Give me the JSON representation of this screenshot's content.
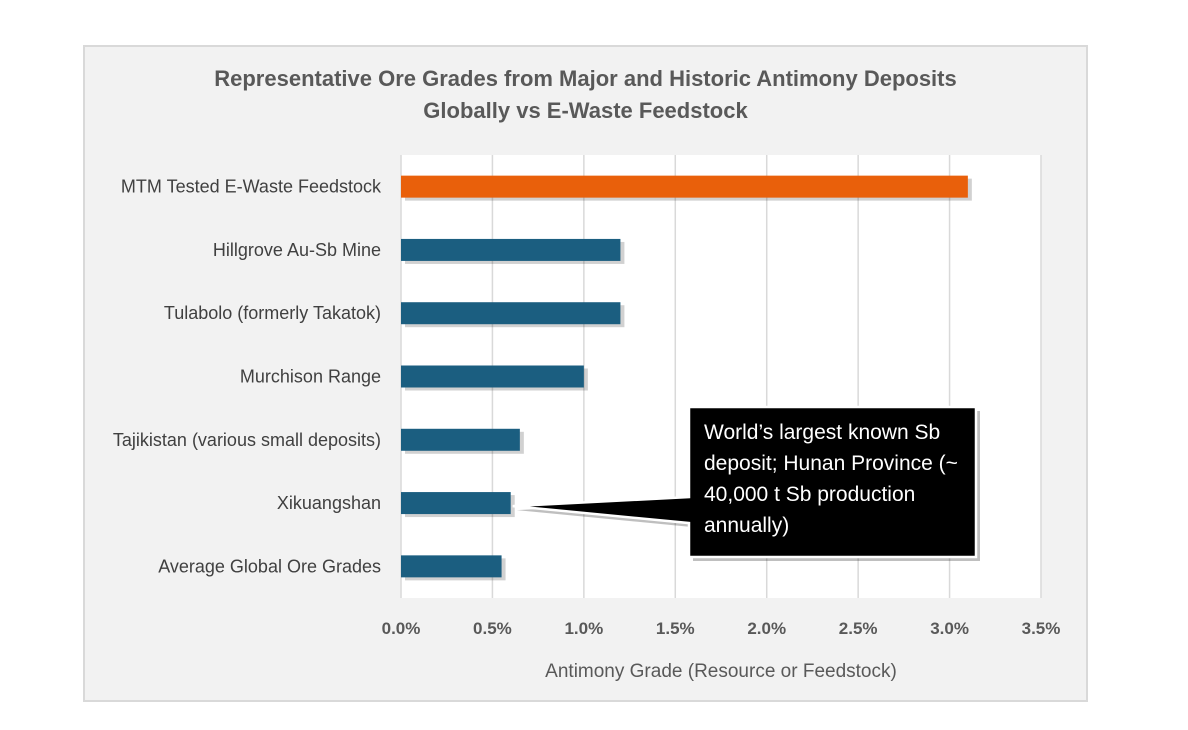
{
  "chart_data": {
    "type": "bar",
    "orientation": "horizontal",
    "title": "Representative Ore Grades from Major and Historic Antimony Deposits",
    "subtitle": "Globally vs E-Waste Feedstock",
    "xlabel": "Antimony Grade (Resource or Feedstock)",
    "ylabel": "",
    "categories": [
      "MTM Tested E-Waste Feedstock",
      "Hillgrove Au-Sb Mine",
      "Tulabolo (formerly Takatok)",
      "Murchison Range",
      "Tajikistan (various small deposits)",
      "Xikuangshan",
      "Average Global Ore Grades"
    ],
    "values": [
      3.1,
      1.2,
      1.2,
      1.0,
      0.65,
      0.6,
      0.55
    ],
    "colors": [
      "#e9600b",
      "#1b5e80",
      "#1b5e80",
      "#1b5e80",
      "#1b5e80",
      "#1b5e80",
      "#1b5e80"
    ],
    "xlim": [
      0,
      3.5
    ],
    "xticks": [
      "0.0%",
      "0.5%",
      "1.0%",
      "1.5%",
      "2.0%",
      "2.5%",
      "3.0%",
      "3.5%"
    ],
    "grid": true,
    "annotation": {
      "target": "Xikuangshan",
      "text": "World’s largest known Sb deposit; Hunan Province (~ 40,000 t Sb production annually)"
    }
  }
}
